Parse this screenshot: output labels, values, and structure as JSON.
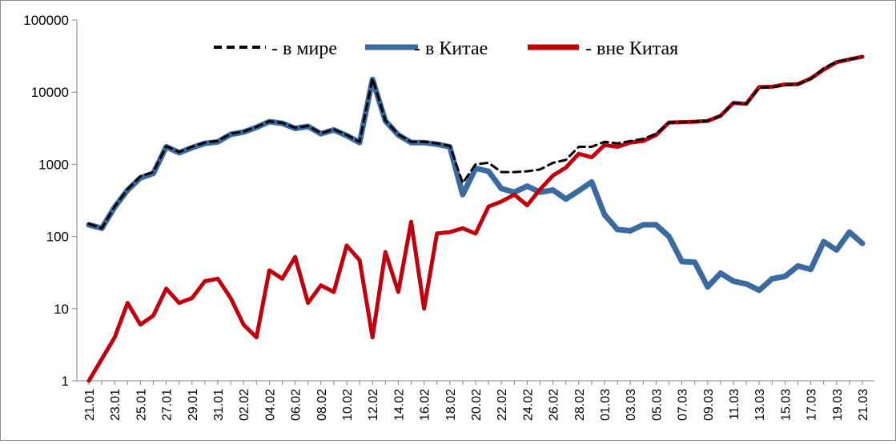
{
  "chart_data": {
    "type": "line",
    "y_scale": "log",
    "ylim": [
      1,
      100000
    ],
    "y_ticks": [
      "1",
      "10",
      "100",
      "1000",
      "10000",
      "100000"
    ],
    "grid": "none",
    "legend_position": "top",
    "x_tick_labels": [
      "21.01",
      "23.01",
      "25.01",
      "27.01",
      "29.01",
      "31.01",
      "02.02",
      "04.02",
      "06.02",
      "08.02",
      "10.02",
      "12.02",
      "14.02",
      "16.02",
      "18.02",
      "20.02",
      "22.02",
      "24.02",
      "26.02",
      "28.02",
      "01.03",
      "03.03",
      "05.03",
      "07.03",
      "09.03",
      "11.03",
      "13.03",
      "15.03",
      "17.03",
      "19.03",
      "21.03"
    ],
    "x": [
      "21.01",
      "22.01",
      "23.01",
      "24.01",
      "25.01",
      "26.01",
      "27.01",
      "28.01",
      "29.01",
      "30.01",
      "31.01",
      "01.02",
      "02.02",
      "03.02",
      "04.02",
      "05.02",
      "06.02",
      "07.02",
      "08.02",
      "09.02",
      "10.02",
      "11.02",
      "12.02",
      "13.02",
      "14.02",
      "15.02",
      "16.02",
      "17.02",
      "18.02",
      "19.02",
      "20.02",
      "21.02",
      "22.02",
      "23.02",
      "24.02",
      "25.02",
      "26.02",
      "27.02",
      "28.02",
      "29.02",
      "01.03",
      "02.03",
      "03.03",
      "04.03",
      "05.03",
      "06.03",
      "07.03",
      "08.03",
      "09.03",
      "10.03",
      "11.03",
      "12.03",
      "13.03",
      "14.03",
      "15.03",
      "16.03",
      "17.03",
      "18.03",
      "19.03",
      "20.03",
      "21.03"
    ],
    "series": [
      {
        "name": "- в мире",
        "color": "#000000",
        "style": "dashed",
        "values": [
          150,
          130,
          260,
          450,
          680,
          780,
          1780,
          1480,
          1750,
          2000,
          2100,
          2650,
          2850,
          3300,
          3950,
          3750,
          3200,
          3400,
          2700,
          3050,
          2550,
          2050,
          15500,
          4050,
          2600,
          2050,
          2050,
          1950,
          1800,
          550,
          1000,
          1050,
          780,
          780,
          800,
          850,
          1050,
          1150,
          1750,
          1750,
          2050,
          1950,
          2100,
          2250,
          2650,
          3800,
          3850,
          3900,
          4000,
          4700,
          7100,
          6900,
          11500,
          11700,
          12500,
          12900,
          15200,
          21500,
          26500,
          28500,
          31000
        ]
      },
      {
        "name": "- в Китае",
        "color": "#3b6aa0",
        "style": "solid",
        "values": [
          145,
          130,
          255,
          440,
          650,
          750,
          1750,
          1450,
          1700,
          1950,
          2050,
          2600,
          2800,
          3250,
          3900,
          3700,
          3150,
          3350,
          2650,
          3000,
          2500,
          2000,
          15000,
          4000,
          2550,
          2000,
          2000,
          1900,
          1750,
          380,
          880,
          800,
          460,
          410,
          500,
          410,
          440,
          330,
          430,
          570,
          200,
          125,
          120,
          145,
          145,
          100,
          45,
          44,
          20,
          31,
          24,
          22,
          18,
          26,
          28,
          39,
          35,
          85,
          65,
          115,
          80
        ]
      },
      {
        "name": "- вне Китая",
        "color": "#c0000c",
        "style": "solid",
        "values": [
          1,
          2,
          4,
          12,
          6,
          8,
          19,
          12,
          14,
          24,
          26,
          14,
          6,
          4,
          34,
          26,
          52,
          12,
          21,
          17,
          75,
          47,
          4,
          61,
          17,
          160,
          10,
          110,
          115,
          130,
          110,
          260,
          305,
          380,
          270,
          450,
          700,
          900,
          1400,
          1250,
          1850,
          1750,
          2000,
          2100,
          2550,
          3800,
          3850,
          3900,
          4000,
          4700,
          7100,
          6900,
          11800,
          11900,
          12800,
          12900,
          15500,
          20500,
          26000,
          28500,
          31000
        ]
      }
    ]
  }
}
